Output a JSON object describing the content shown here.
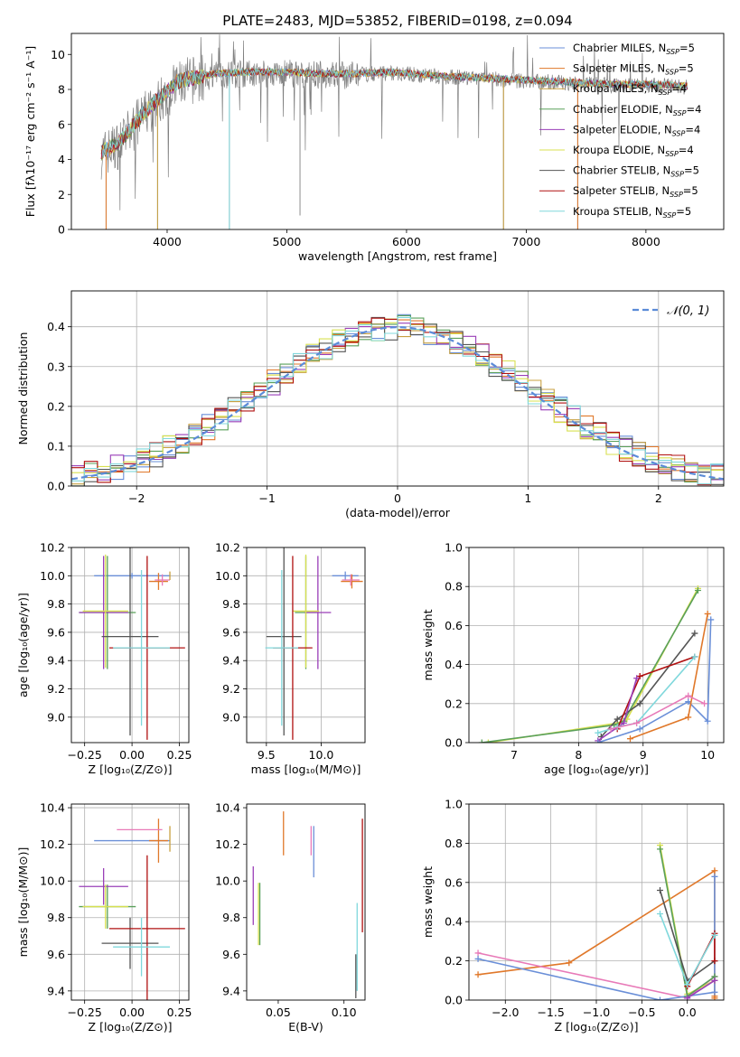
{
  "figure": {
    "title": "PLATE=2483, MJD=53852, FIBERID=0198, z=0.094"
  },
  "colors": {
    "Chabrier MILES": "#6a8fd8",
    "Salpeter MILES": "#e0782a",
    "Kroupa MILES": "#c8a040",
    "Chabrier ELODIE": "#5aa05a",
    "Salpeter ELODIE": "#9a3fb8",
    "Kroupa ELODIE": "#d8e050",
    "Chabrier STELIB": "#555555",
    "Salpeter STELIB": "#b01010",
    "Kroupa STELIB": "#80d8dc",
    "gaussian": "#5b8bd8",
    "pink": "#e87ab8",
    "green2": "#8ac040"
  },
  "chart_data": [
    {
      "id": "spectrum",
      "type": "line",
      "title": "PLATE=2483, MJD=53852, FIBERID=0198, z=0.094",
      "xlabel": "wavelength [Angstrom, rest frame]",
      "ylabel": "Flux [fλ10⁻¹⁷ erg cm⁻² s⁻¹ A⁻¹]",
      "xlim": [
        3200,
        8650
      ],
      "ylim": [
        0,
        11.2
      ],
      "xticks": [
        4000,
        5000,
        6000,
        7000,
        8000
      ],
      "yticks": [
        0,
        2,
        4,
        6,
        8,
        10
      ],
      "grid": false,
      "legend_position": "right",
      "legend": [
        {
          "text": "Chabrier MILES, N",
          "sub": "SSP",
          "tail": "=5",
          "key": "Chabrier MILES"
        },
        {
          "text": "Salpeter MILES, N",
          "sub": "SSP",
          "tail": "=5",
          "key": "Salpeter MILES"
        },
        {
          "text": "Kroupa MILES, N",
          "sub": "SSP",
          "tail": "=4",
          "key": "Kroupa MILES"
        },
        {
          "text": "Chabrier ELODIE, N",
          "sub": "SSP",
          "tail": "=4",
          "key": "Chabrier ELODIE"
        },
        {
          "text": "Salpeter ELODIE, N",
          "sub": "SSP",
          "tail": "=4",
          "key": "Salpeter ELODIE"
        },
        {
          "text": "Kroupa ELODIE, N",
          "sub": "SSP",
          "tail": "=4",
          "key": "Kroupa ELODIE"
        },
        {
          "text": "Chabrier STELIB, N",
          "sub": "SSP",
          "tail": "=5",
          "key": "Chabrier STELIB"
        },
        {
          "text": "Salpeter STELIB, N",
          "sub": "SSP",
          "tail": "=5",
          "key": "Salpeter STELIB"
        },
        {
          "text": "Kroupa STELIB, N",
          "sub": "SSP",
          "tail": "=5",
          "key": "Kroupa STELIB"
        }
      ],
      "continuum_x": [
        3450,
        3600,
        3800,
        3950,
        4100,
        4400,
        4700,
        5000,
        5300,
        5600,
        5900,
        6200,
        6500,
        6800,
        7100,
        7400,
        7700,
        8000,
        8350
      ],
      "continuum_y": [
        4.4,
        5.0,
        6.6,
        7.6,
        8.5,
        8.9,
        9.0,
        9.0,
        8.9,
        8.9,
        9.0,
        8.8,
        8.7,
        8.6,
        8.5,
        8.4,
        8.3,
        8.3,
        8.2
      ],
      "absorption_lines": [
        {
          "x": 3490,
          "y": 0.0
        },
        {
          "x": 3920,
          "y": 0.0
        },
        {
          "x": 4520,
          "y": 0.0
        },
        {
          "x": 5110,
          "y": 0.8
        },
        {
          "x": 6810,
          "y": 0.0
        },
        {
          "x": 7430,
          "y": 0.0
        }
      ]
    },
    {
      "id": "residuals",
      "type": "histogram",
      "xlabel": "(data-model)/error",
      "ylabel": "Normed distribution",
      "xlim": [
        -2.5,
        2.5
      ],
      "ylim": [
        0,
        0.49
      ],
      "xticks": [
        -2,
        -1,
        0,
        1,
        2
      ],
      "yticks": [
        0.0,
        0.1,
        0.2,
        0.3,
        0.4
      ],
      "grid": true,
      "legend_position": "top-right",
      "gaussian_label": "𝒩(0, 1)",
      "bin_width": 0.1
    },
    {
      "id": "age_vs_Z",
      "type": "errorbar",
      "xlabel": "Z [log₁₀(Z/Z⊙)]",
      "ylabel": "age  [log₁₀(age/yr)]",
      "xlim": [
        -0.32,
        0.3
      ],
      "ylim": [
        8.82,
        10.2
      ],
      "xticks": [
        -0.25,
        0.0,
        0.25
      ],
      "xticklabels": [
        "−0.25",
        "0.00",
        "0.25"
      ],
      "yticks": [
        9.0,
        9.2,
        9.4,
        9.6,
        9.8,
        10.0,
        10.2
      ],
      "yticklabels": [
        "9.0",
        "9.2",
        "9.4",
        "9.6",
        "9.8",
        "10.0",
        "10.2"
      ],
      "grid": true,
      "points": [
        {
          "x": 0.0,
          "xerr": 0.2,
          "y": 10.0,
          "yerr": 0.02,
          "c": "Chabrier MILES"
        },
        {
          "x": 0.14,
          "xerr": 0.05,
          "y": 9.96,
          "yerr": 0.06,
          "c": "Salpeter MILES"
        },
        {
          "x": 0.16,
          "xerr": 0.04,
          "y": 9.97,
          "yerr": 0.04,
          "c": "pink"
        },
        {
          "x": 0.2,
          "xerr": 0.0,
          "y": 10.0,
          "yerr": 0.03,
          "c": "Kroupa MILES"
        },
        {
          "x": -0.13,
          "xerr": 0.15,
          "y": 9.74,
          "yerr": 0.4,
          "c": "Chabrier ELODIE"
        },
        {
          "x": -0.15,
          "xerr": 0.13,
          "y": 9.74,
          "yerr": 0.4,
          "c": "Salpeter ELODIE"
        },
        {
          "x": -0.14,
          "xerr": 0.12,
          "y": 9.75,
          "yerr": 0.4,
          "c": "Kroupa ELODIE"
        },
        {
          "x": -0.01,
          "xerr": 0.15,
          "y": 9.57,
          "yerr": 0.7,
          "c": "Chabrier STELIB"
        },
        {
          "x": 0.08,
          "xerr": 0.2,
          "y": 9.49,
          "yerr": 0.65,
          "c": "Salpeter STELIB"
        },
        {
          "x": 0.05,
          "xerr": 0.15,
          "y": 9.49,
          "yerr": 0.55,
          "c": "Kroupa STELIB"
        }
      ]
    },
    {
      "id": "age_vs_mass",
      "type": "errorbar",
      "xlabel": "mass [log₁₀(M/M⊙)]",
      "ylabel": "",
      "xlim": [
        9.32,
        10.4
      ],
      "ylim": [
        8.82,
        10.2
      ],
      "xticks": [
        9.5,
        10.0
      ],
      "xticklabels": [
        "9.5",
        "10.0"
      ],
      "yticks": [
        9.0,
        9.2,
        9.4,
        9.6,
        9.8,
        10.0,
        10.2
      ],
      "yticklabels": [
        "9.0",
        "9.2",
        "9.4",
        "9.6",
        "9.8",
        "10.0",
        "10.2"
      ],
      "grid": true,
      "points": [
        {
          "x": 10.22,
          "xerr": 0.12,
          "y": 10.0,
          "yerr": 0.03,
          "c": "Chabrier MILES"
        },
        {
          "x": 10.28,
          "xerr": 0.1,
          "y": 9.96,
          "yerr": 0.05,
          "c": "Salpeter MILES"
        },
        {
          "x": 10.27,
          "xerr": 0.08,
          "y": 9.97,
          "yerr": 0.04,
          "c": "pink"
        },
        {
          "x": 9.86,
          "xerr": 0.1,
          "y": 9.74,
          "yerr": 0.4,
          "c": "Chabrier ELODIE"
        },
        {
          "x": 9.97,
          "xerr": 0.12,
          "y": 9.74,
          "yerr": 0.4,
          "c": "Salpeter ELODIE"
        },
        {
          "x": 9.86,
          "xerr": 0.12,
          "y": 9.75,
          "yerr": 0.4,
          "c": "Kroupa ELODIE"
        },
        {
          "x": 9.66,
          "xerr": 0.16,
          "y": 9.57,
          "yerr": 0.7,
          "c": "Chabrier STELIB"
        },
        {
          "x": 9.74,
          "xerr": 0.18,
          "y": 9.49,
          "yerr": 0.65,
          "c": "Salpeter STELIB"
        },
        {
          "x": 9.64,
          "xerr": 0.15,
          "y": 9.49,
          "yerr": 0.55,
          "c": "Kroupa STELIB"
        }
      ]
    },
    {
      "id": "mass_weight_vs_age",
      "type": "line",
      "xlabel": "age  [log₁₀(age/yr)]",
      "ylabel": "mass weight",
      "xlim": [
        6.3,
        10.25
      ],
      "ylim": [
        0,
        1.0
      ],
      "xticks": [
        7,
        8,
        9,
        10
      ],
      "xticklabels": [
        "7",
        "8",
        "9",
        "10"
      ],
      "yticks": [
        0.0,
        0.2,
        0.4,
        0.6,
        0.8,
        1.0
      ],
      "yticklabels": [
        "0.0",
        "0.2",
        "0.4",
        "0.6",
        "0.8",
        "1.0"
      ],
      "grid": true,
      "series": [
        {
          "c": "Kroupa ELODIE",
          "x": [
            6.6,
            8.6,
            8.75,
            9.85
          ],
          "y": [
            0.0,
            0.1,
            0.12,
            0.79
          ]
        },
        {
          "c": "Chabrier ELODIE",
          "x": [
            6.5,
            8.55,
            8.7,
            9.85
          ],
          "y": [
            0.0,
            0.09,
            0.11,
            0.78
          ]
        },
        {
          "c": "Chabrier STELIB",
          "x": [
            8.35,
            8.6,
            8.95,
            9.8
          ],
          "y": [
            0.03,
            0.12,
            0.2,
            0.56
          ]
        },
        {
          "c": "Salpeter STELIB",
          "x": [
            8.6,
            8.95,
            9.8
          ],
          "y": [
            0.07,
            0.34,
            0.44
          ]
        },
        {
          "c": "Salpeter ELODIE",
          "x": [
            8.3,
            8.7,
            8.9
          ],
          "y": [
            0.01,
            0.1,
            0.33
          ]
        },
        {
          "c": "Kroupa STELIB",
          "x": [
            8.3,
            8.6,
            8.9,
            9.8
          ],
          "y": [
            0.05,
            0.08,
            0.1,
            0.44
          ]
        },
        {
          "c": "Chabrier MILES",
          "x": [
            8.3,
            8.95,
            9.7,
            10.0,
            10.05
          ],
          "y": [
            0.0,
            0.07,
            0.21,
            0.11,
            0.63
          ]
        },
        {
          "c": "Salpeter MILES",
          "x": [
            8.8,
            9.7,
            10.0
          ],
          "y": [
            0.02,
            0.13,
            0.66
          ]
        },
        {
          "c": "pink",
          "x": [
            8.5,
            8.9,
            9.7,
            9.95
          ],
          "y": [
            0.07,
            0.1,
            0.24,
            0.2
          ]
        }
      ]
    },
    {
      "id": "mass_vs_Z",
      "type": "errorbar",
      "xlabel": "Z [log₁₀(Z/Z⊙)]",
      "ylabel": "mass [log₁₀(M/M⊙)]",
      "xlim": [
        -0.32,
        0.3
      ],
      "ylim": [
        9.35,
        10.42
      ],
      "xticks": [
        -0.25,
        0.0,
        0.25
      ],
      "xticklabels": [
        "−0.25",
        "0.00",
        "0.25"
      ],
      "yticks": [
        9.4,
        9.6,
        9.8,
        10.0,
        10.2,
        10.4
      ],
      "yticklabels": [
        "9.4",
        "9.6",
        "9.8",
        "10.0",
        "10.2",
        "10.4"
      ],
      "grid": true,
      "points": [
        {
          "x": 0.0,
          "xerr": 0.2,
          "y": 10.22,
          "yerr": 0.0,
          "c": "Chabrier MILES"
        },
        {
          "x": 0.14,
          "xerr": 0.05,
          "y": 10.22,
          "yerr": 0.12,
          "c": "Salpeter MILES"
        },
        {
          "x": 0.04,
          "xerr": 0.12,
          "y": 10.28,
          "yerr": 0.0,
          "c": "pink"
        },
        {
          "x": 0.2,
          "xerr": 0.0,
          "y": 10.23,
          "yerr": 0.07,
          "c": "Kroupa MILES"
        },
        {
          "x": -0.13,
          "xerr": 0.15,
          "y": 9.86,
          "yerr": 0.12,
          "c": "Chabrier ELODIE"
        },
        {
          "x": -0.15,
          "xerr": 0.13,
          "y": 9.97,
          "yerr": 0.1,
          "c": "Salpeter ELODIE"
        },
        {
          "x": -0.14,
          "xerr": 0.12,
          "y": 9.86,
          "yerr": 0.12,
          "c": "Kroupa ELODIE"
        },
        {
          "x": -0.01,
          "xerr": 0.15,
          "y": 9.66,
          "yerr": 0.14,
          "c": "Chabrier STELIB"
        },
        {
          "x": 0.08,
          "xerr": 0.2,
          "y": 9.74,
          "yerr": 0.4,
          "c": "Salpeter STELIB"
        },
        {
          "x": 0.05,
          "xerr": 0.15,
          "y": 9.64,
          "yerr": 0.16,
          "c": "Kroupa STELIB"
        }
      ]
    },
    {
      "id": "mass_vs_ebv",
      "type": "errorbar",
      "xlabel": "E(B-V)",
      "ylabel": "",
      "xlim": [
        0.026,
        0.116
      ],
      "ylim": [
        9.35,
        10.42
      ],
      "xticks": [
        0.05,
        0.1
      ],
      "xticklabels": [
        "0.05",
        "0.10"
      ],
      "yticks": [
        9.4,
        9.6,
        9.8,
        10.0,
        10.2,
        10.4
      ],
      "yticklabels": [
        "9.4",
        "9.6",
        "9.8",
        "10.0",
        "10.2",
        "10.4"
      ],
      "grid": false,
      "points": [
        {
          "x": 0.054,
          "xerr": 0.0,
          "y": 10.26,
          "yerr": 0.12,
          "c": "Salpeter MILES"
        },
        {
          "x": 0.075,
          "xerr": 0.0,
          "y": 10.22,
          "yerr": 0.08,
          "c": "pink"
        },
        {
          "x": 0.077,
          "xerr": 0.0,
          "y": 10.16,
          "yerr": 0.14,
          "c": "Chabrier MILES"
        },
        {
          "x": 0.031,
          "xerr": 0.0,
          "y": 9.92,
          "yerr": 0.16,
          "c": "Salpeter ELODIE"
        },
        {
          "x": 0.035,
          "xerr": 0.0,
          "y": 9.82,
          "yerr": 0.17,
          "c": "Kroupa ELODIE"
        },
        {
          "x": 0.036,
          "xerr": 0.0,
          "y": 9.82,
          "yerr": 0.17,
          "c": "Chabrier ELODIE"
        },
        {
          "x": 0.114,
          "xerr": 0.0,
          "y": 10.03,
          "yerr": 0.31,
          "c": "Salpeter STELIB"
        },
        {
          "x": 0.11,
          "xerr": 0.0,
          "y": 9.64,
          "yerr": 0.24,
          "c": "Kroupa STELIB"
        },
        {
          "x": 0.109,
          "xerr": 0.0,
          "y": 9.48,
          "yerr": 0.12,
          "c": "Chabrier STELIB"
        }
      ]
    },
    {
      "id": "mass_weight_vs_Z",
      "type": "line",
      "xlabel": "Z [log₁₀(Z/Z⊙)]",
      "ylabel": "mass weight",
      "xlim": [
        -2.4,
        0.4
      ],
      "ylim": [
        0,
        1.0
      ],
      "xticks": [
        -2.0,
        -1.5,
        -1.0,
        -0.5,
        0.0
      ],
      "xticklabels": [
        "−2.0",
        "−1.5",
        "−1.0",
        "−0.5",
        "0.0"
      ],
      "yticks": [
        0.0,
        0.2,
        0.4,
        0.6,
        0.8,
        1.0
      ],
      "yticklabels": [
        "0.0",
        "0.2",
        "0.4",
        "0.6",
        "0.8",
        "1.0"
      ],
      "grid": true,
      "series": [
        {
          "c": "Salpeter MILES",
          "x": [
            -2.3,
            -1.3,
            0.3,
            0.3,
            0.3
          ],
          "y": [
            0.13,
            0.19,
            0.66,
            0.02,
            0.01
          ]
        },
        {
          "c": "pink",
          "x": [
            -2.3,
            0.0,
            0.3
          ],
          "y": [
            0.24,
            0.01,
            0.12
          ]
        },
        {
          "c": "Chabrier MILES",
          "x": [
            -2.3,
            -0.3,
            0.3,
            0.3
          ],
          "y": [
            0.21,
            0.0,
            0.04,
            0.63
          ]
        },
        {
          "c": "Kroupa ELODIE",
          "x": [
            -0.3,
            0.0,
            0.3
          ],
          "y": [
            0.79,
            0.03,
            0.1
          ]
        },
        {
          "c": "Chabrier ELODIE",
          "x": [
            -0.3,
            0.0,
            0.3
          ],
          "y": [
            0.77,
            0.02,
            0.12
          ]
        },
        {
          "c": "Chabrier STELIB",
          "x": [
            -0.3,
            0.0,
            0.3
          ],
          "y": [
            0.56,
            0.1,
            0.2
          ]
        },
        {
          "c": "Salpeter STELIB",
          "x": [
            0.0,
            0.3,
            0.3
          ],
          "y": [
            0.07,
            0.34,
            0.2
          ]
        },
        {
          "c": "Kroupa STELIB",
          "x": [
            -0.3,
            0.0,
            0.3
          ],
          "y": [
            0.44,
            0.08,
            0.33
          ]
        },
        {
          "c": "Salpeter ELODIE",
          "x": [
            0.0,
            0.3
          ],
          "y": [
            0.01,
            0.1
          ]
        }
      ]
    }
  ]
}
